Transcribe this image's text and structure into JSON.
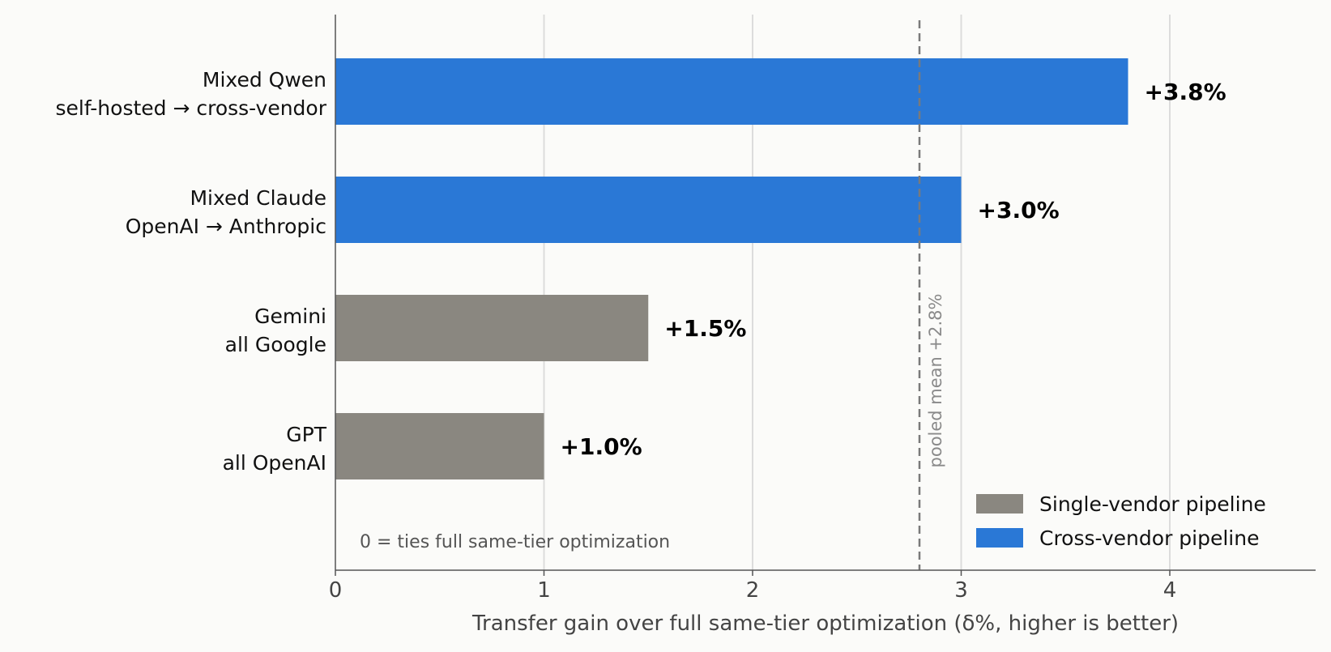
{
  "chart_data": {
    "type": "bar",
    "orientation": "horizontal",
    "xlabel": "Transfer gain over full same-tier optimization  (δ%, higher is better)",
    "xlim": [
      0,
      4.7
    ],
    "xticks": [
      "0",
      "1",
      "2",
      "3",
      "4"
    ],
    "grid": "vertical",
    "bars": [
      {
        "lines": [
          "Mixed Qwen",
          "self-hosted → cross-vendor"
        ],
        "value": 3.8,
        "label": "+3.8%",
        "group": "cross"
      },
      {
        "lines": [
          "Mixed Claude",
          "OpenAI → Anthropic"
        ],
        "value": 3.0,
        "label": "+3.0%",
        "group": "cross"
      },
      {
        "lines": [
          "Gemini",
          "all Google"
        ],
        "value": 1.5,
        "label": "+1.5%",
        "group": "single"
      },
      {
        "lines": [
          "GPT",
          "all OpenAI"
        ],
        "value": 1.0,
        "label": "+1.0%",
        "group": "single"
      }
    ],
    "reference_line": {
      "value": 2.8,
      "label": "pooled mean +2.8%",
      "style": "dashed"
    },
    "annotation": "0  =  ties full same-tier optimization",
    "legend": {
      "placement": "bottom-right",
      "entries": [
        {
          "key": "single",
          "label": "Single-vendor pipeline",
          "color": "#8a8780"
        },
        {
          "key": "cross",
          "label": "Cross-vendor pipeline",
          "color": "#2a78d6"
        }
      ]
    }
  }
}
